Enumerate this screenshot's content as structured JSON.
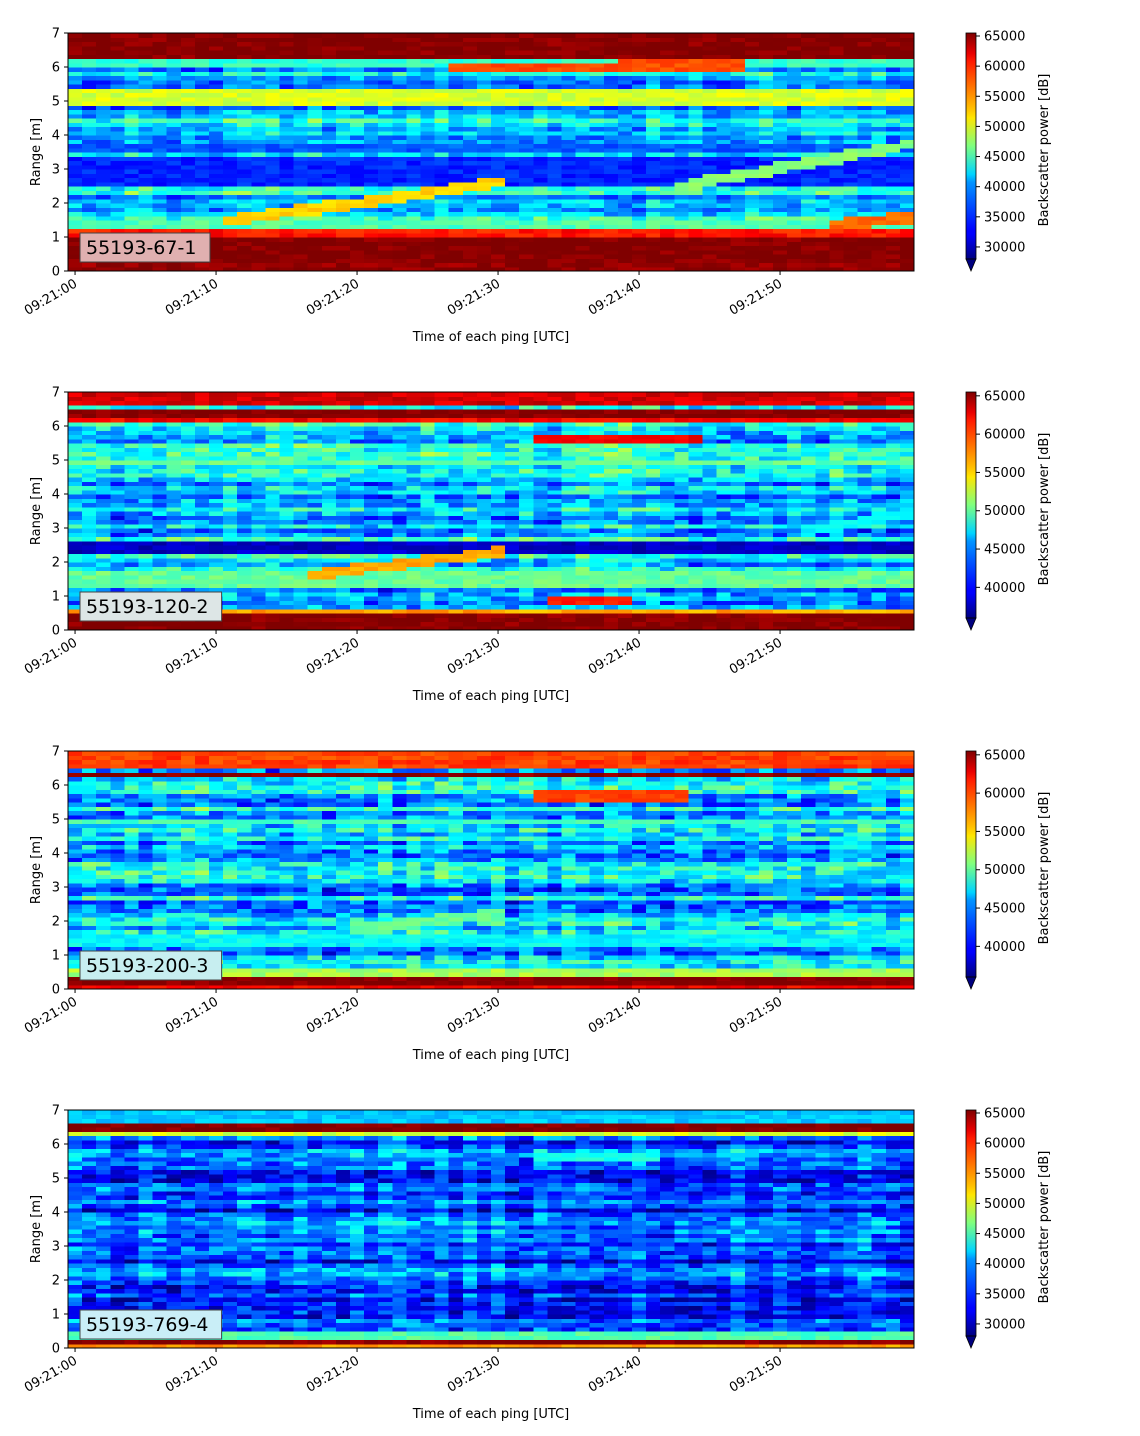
{
  "chart_data": [
    {
      "type": "heatmap",
      "label": "55193-67-1",
      "label_bg": "#e0b0b0",
      "xlabel": "Time of each ping [UTC]",
      "ylabel": "Range [m]",
      "colorbar_label": "Backscatter power [dB]",
      "x_ticks": [
        "09:21:00",
        "09:21:10",
        "09:21:20",
        "09:21:30",
        "09:21:40",
        "09:21:50"
      ],
      "x_range_seconds": [
        -0.5,
        59.5
      ],
      "y_ticks": [
        0,
        1,
        2,
        3,
        4,
        5,
        6,
        7
      ],
      "ylim": [
        0,
        7
      ],
      "cbar_ticks": [
        30000,
        35000,
        40000,
        45000,
        50000,
        55000,
        60000,
        65000
      ],
      "clim": [
        28000,
        65500
      ],
      "colormap": "jet",
      "features": [
        {
          "kind": "band",
          "y0": 0.0,
          "y1": 0.2,
          "value": 65000
        },
        {
          "kind": "band",
          "y0": 0.2,
          "y1": 1.05,
          "value": 65500
        },
        {
          "kind": "band",
          "y0": 1.05,
          "y1": 1.25,
          "value": 60000
        },
        {
          "kind": "band",
          "y0": 1.25,
          "y1": 1.5,
          "value": 45000
        },
        {
          "kind": "band",
          "y0": 2.5,
          "y1": 3.4,
          "value": 34000
        },
        {
          "kind": "band",
          "y0": 3.5,
          "y1": 3.75,
          "value": 36000
        },
        {
          "kind": "band",
          "y0": 4.9,
          "y1": 5.4,
          "value": 50000
        },
        {
          "kind": "band",
          "y0": 6.0,
          "y1": 6.2,
          "value": 44000
        },
        {
          "kind": "band",
          "y0": 6.3,
          "y1": 7.0,
          "value": 65500
        },
        {
          "kind": "track",
          "t0": 11,
          "y0": 1.5,
          "t1": 30,
          "y1": 2.6,
          "value": 53000
        },
        {
          "kind": "track",
          "t0": 43,
          "y0": 2.5,
          "t1": 60,
          "y1": 3.8,
          "value": 47000
        },
        {
          "kind": "track",
          "t0": 27,
          "y0": 6.0,
          "t1": 47,
          "y1": 6.05,
          "value": 58000
        },
        {
          "kind": "track",
          "t0": 54,
          "y0": 1.4,
          "t1": 60,
          "y1": 1.6,
          "value": 57000
        }
      ]
    },
    {
      "type": "heatmap",
      "label": "55193-120-2",
      "label_bg": "#dde6e6",
      "xlabel": "Time of each ping [UTC]",
      "ylabel": "Range [m]",
      "colorbar_label": "Backscatter power [dB]",
      "x_ticks": [
        "09:21:00",
        "09:21:10",
        "09:21:20",
        "09:21:30",
        "09:21:40",
        "09:21:50"
      ],
      "x_range_seconds": [
        -0.5,
        59.5
      ],
      "y_ticks": [
        0,
        1,
        2,
        3,
        4,
        5,
        6,
        7
      ],
      "ylim": [
        0,
        7
      ],
      "cbar_ticks": [
        40000,
        45000,
        50000,
        55000,
        60000,
        65000
      ],
      "clim": [
        36000,
        65500
      ],
      "colormap": "jet",
      "features": [
        {
          "kind": "band",
          "y0": 0.0,
          "y1": 0.45,
          "value": 65500
        },
        {
          "kind": "band",
          "y0": 0.45,
          "y1": 0.6,
          "value": 57000
        },
        {
          "kind": "band",
          "y0": 1.3,
          "y1": 1.8,
          "value": 50000
        },
        {
          "kind": "band",
          "y0": 2.3,
          "y1": 2.6,
          "value": 38000
        },
        {
          "kind": "band",
          "y0": 4.85,
          "y1": 5.0,
          "value": 50000
        },
        {
          "kind": "band",
          "y0": 6.1,
          "y1": 6.3,
          "value": 62000
        },
        {
          "kind": "band",
          "y0": 6.3,
          "y1": 6.55,
          "value": 65500
        },
        {
          "kind": "band",
          "y0": 6.6,
          "y1": 7.0,
          "value": 63000
        },
        {
          "kind": "track",
          "t0": 17,
          "y0": 1.65,
          "t1": 30,
          "y1": 2.3,
          "value": 57000
        },
        {
          "kind": "track",
          "t0": 33,
          "y0": 5.6,
          "t1": 44,
          "y1": 5.65,
          "value": 62000
        },
        {
          "kind": "track",
          "t0": 34,
          "y0": 0.85,
          "t1": 39,
          "y1": 0.85,
          "value": 61000
        },
        {
          "kind": "track",
          "t0": 52,
          "y0": 2.9,
          "t1": 60,
          "y1": 3.5,
          "value": 47000
        }
      ]
    },
    {
      "type": "heatmap",
      "label": "55193-200-3",
      "label_bg": "#c7eef0",
      "xlabel": "Time of each ping [UTC]",
      "ylabel": "Range [m]",
      "colorbar_label": "Backscatter power [dB]",
      "x_ticks": [
        "09:21:00",
        "09:21:10",
        "09:21:20",
        "09:21:30",
        "09:21:40",
        "09:21:50"
      ],
      "x_range_seconds": [
        -0.5,
        59.5
      ],
      "y_ticks": [
        0,
        1,
        2,
        3,
        4,
        5,
        6,
        7
      ],
      "ylim": [
        0,
        7
      ],
      "cbar_ticks": [
        40000,
        45000,
        50000,
        55000,
        60000,
        65000
      ],
      "clim": [
        36000,
        65500
      ],
      "colormap": "jet",
      "features": [
        {
          "kind": "band",
          "y0": 0.0,
          "y1": 0.15,
          "value": 62000
        },
        {
          "kind": "band",
          "y0": 0.15,
          "y1": 0.35,
          "value": 65500
        },
        {
          "kind": "band",
          "y0": 0.35,
          "y1": 0.6,
          "value": 52000
        },
        {
          "kind": "band",
          "y0": 1.3,
          "y1": 1.6,
          "value": 47000
        },
        {
          "kind": "band",
          "y0": 4.85,
          "y1": 5.0,
          "value": 49000
        },
        {
          "kind": "band",
          "y0": 6.2,
          "y1": 6.4,
          "value": 65500
        },
        {
          "kind": "band",
          "y0": 6.5,
          "y1": 7.0,
          "value": 60000
        },
        {
          "kind": "track",
          "t0": 33,
          "y0": 5.7,
          "t1": 43,
          "y1": 5.7,
          "value": 60000
        },
        {
          "kind": "track",
          "t0": 20,
          "y0": 1.8,
          "t1": 30,
          "y1": 2.2,
          "value": 50000
        },
        {
          "kind": "track",
          "t0": 50,
          "y0": 3.0,
          "t1": 60,
          "y1": 3.6,
          "value": 45000
        }
      ]
    },
    {
      "type": "heatmap",
      "label": "55193-769-4",
      "label_bg": "#c9eef7",
      "xlabel": "Time of each ping [UTC]",
      "ylabel": "Range [m]",
      "colorbar_label": "Backscatter power [dB]",
      "x_ticks": [
        "09:21:00",
        "09:21:10",
        "09:21:20",
        "09:21:30",
        "09:21:40",
        "09:21:50"
      ],
      "x_range_seconds": [
        -0.5,
        59.5
      ],
      "y_ticks": [
        0,
        1,
        2,
        3,
        4,
        5,
        6,
        7
      ],
      "ylim": [
        0,
        7
      ],
      "cbar_ticks": [
        30000,
        35000,
        40000,
        45000,
        50000,
        55000,
        60000,
        65000
      ],
      "clim": [
        28000,
        65500
      ],
      "colormap": "jet",
      "features": [
        {
          "kind": "band",
          "y0": 0.0,
          "y1": 0.1,
          "value": 55000
        },
        {
          "kind": "band",
          "y0": 0.1,
          "y1": 0.3,
          "value": 65500
        },
        {
          "kind": "band",
          "y0": 0.3,
          "y1": 0.5,
          "value": 45000
        },
        {
          "kind": "band",
          "y0": 6.4,
          "y1": 6.6,
          "value": 65500
        },
        {
          "kind": "band",
          "y0": 6.2,
          "y1": 6.35,
          "value": 50000
        },
        {
          "kind": "band",
          "y0": 6.6,
          "y1": 7.0,
          "value": 40000
        },
        {
          "kind": "track",
          "t0": 33,
          "y0": 5.6,
          "t1": 41,
          "y1": 5.6,
          "value": 43000
        }
      ]
    }
  ]
}
